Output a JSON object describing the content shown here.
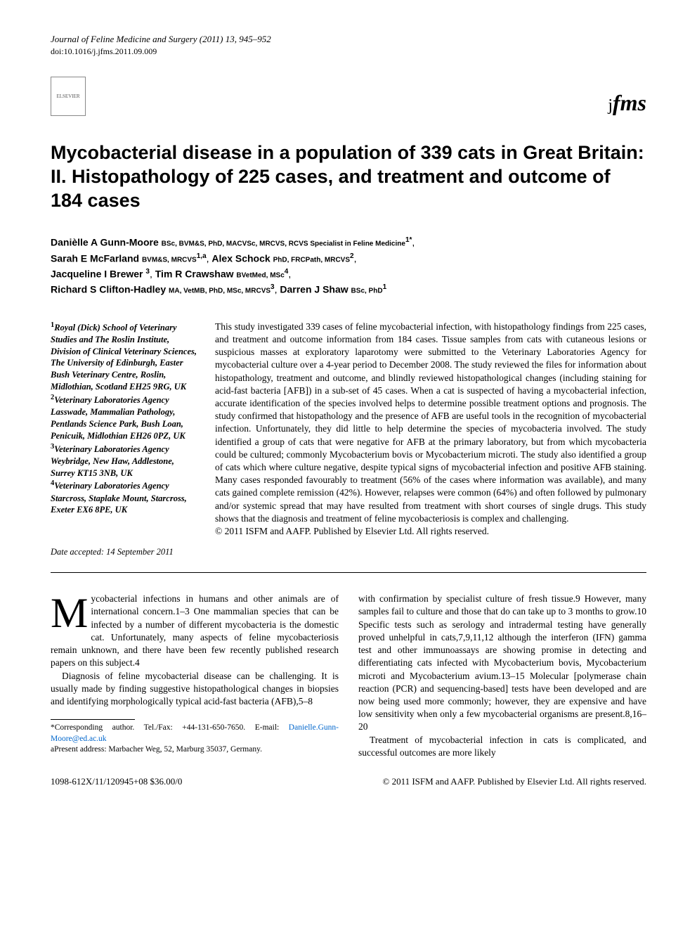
{
  "journal_header": "Journal of Feline Medicine and Surgery (2011) 13, 945–952",
  "doi": "doi:10.1016/j.jfms.2011.09.009",
  "elsevier_label": "ELSEVIER",
  "jfms_logo_text": "jfms",
  "title": "Mycobacterial disease in a population of 339 cats in Great Britain: II. Histopathology of 225 cases, and treatment and outcome of 184 cases",
  "authors": [
    {
      "name": "Danièlle A Gunn-Moore",
      "cred": "BSc, BVM&S, PhD, MACVSc, MRCVS, RCVS Specialist in Feline Medicine",
      "sup": "1*",
      "trail": ","
    },
    {
      "name": "Sarah E McFarland",
      "cred": "BVM&S, MRCVS",
      "sup": "1,a",
      "trail": ", "
    },
    {
      "name": "Alex Schock",
      "cred": "PhD, FRCPath, MRCVS",
      "sup": "2",
      "trail": ","
    },
    {
      "name": "Jacqueline I Brewer",
      "cred": "",
      "sup": "3",
      "trail": ", "
    },
    {
      "name": "Tim R Crawshaw",
      "cred": "BVetMed, MSc",
      "sup": "4",
      "trail": ","
    },
    {
      "name": "Richard S Clifton-Hadley",
      "cred": "MA, VetMB, PhD, MSc, MRCVS",
      "sup": "3",
      "trail": ", "
    },
    {
      "name": "Darren J Shaw",
      "cred": "BSc, PhD",
      "sup": "1",
      "trail": ""
    }
  ],
  "affiliations": [
    {
      "sup": "1",
      "text": "Royal (Dick) School of Veterinary Studies and The Roslin Institute, Division of Clinical Veterinary Sciences, The University of Edinburgh, Easter Bush Veterinary Centre, Roslin, Midlothian, Scotland EH25 9RG, UK"
    },
    {
      "sup": "2",
      "text": "Veterinary Laboratories Agency Lasswade, Mammalian Pathology, Pentlands Science Park, Bush Loan, Penicuik, Midlothian EH26 0PZ, UK"
    },
    {
      "sup": "3",
      "text": "Veterinary Laboratories Agency Weybridge, New Haw, Addlestone, Surrey KT15 3NB, UK"
    },
    {
      "sup": "4",
      "text": "Veterinary Laboratories Agency Starcross, Staplake Mount, Starcross, Exeter EX6 8PE, UK"
    }
  ],
  "abstract": "This study investigated 339 cases of feline mycobacterial infection, with histopathology findings from 225 cases, and treatment and outcome information from 184 cases. Tissue samples from cats with cutaneous lesions or suspicious masses at exploratory laparotomy were submitted to the Veterinary Laboratories Agency for mycobacterial culture over a 4-year period to December 2008. The study reviewed the files for information about histopathology, treatment and outcome, and blindly reviewed histopathological changes (including staining for acid-fast bacteria [AFB]) in a sub-set of 45 cases. When a cat is suspected of having a mycobacterial infection, accurate identification of the species involved helps to determine possible treatment options and prognosis. The study confirmed that histopathology and the presence of AFB are useful tools in the recognition of mycobacterial infection. Unfortunately, they did little to help determine the species of mycobacteria involved. The study identified a group of cats that were negative for AFB at the primary laboratory, but from which mycobacteria could be cultured; commonly Mycobacterium bovis or Mycobacterium microti. The study also identified a group of cats which where culture negative, despite typical signs of mycobacterial infection and positive AFB staining. Many cases responded favourably to treatment (56% of the cases where information was available), and many cats gained complete remission (42%). However, relapses were common (64%) and often followed by pulmonary and/or systemic spread that may have resulted from treatment with short courses of single drugs. This study shows that the diagnosis and treatment of feline mycobacteriosis is complex and challenging.",
  "copyright_abstract": "© 2011 ISFM and AAFP. Published by Elsevier Ltd. All rights reserved.",
  "date_accepted": "Date accepted: 14 September 2011",
  "body_left_p1": "ycobacterial infections in humans and other animals are of international concern.1–3 One mammalian species that can be infected by a number of different mycobacteria is the domestic cat. Unfortunately, many aspects of feline mycobacteriosis remain unknown, and there have been few recently published research papers on this subject.4",
  "body_left_p2": "Diagnosis of feline mycobacterial disease can be challenging. It is usually made by finding suggestive histopathological changes in biopsies and identifying morphologically typical acid-fast bacteria (AFB),5–8",
  "body_right_p1": "with confirmation by specialist culture of fresh tissue.9 However, many samples fail to culture and those that do can take up to 3 months to grow.10 Specific tests such as serology and intradermal testing have generally proved unhelpful in cats,7,9,11,12 although the interferon (IFN) gamma test and other immunoassays are showing promise in detecting and differentiating cats infected with Mycobacterium bovis, Mycobacterium microti and Mycobacterium avium.13–15 Molecular [polymerase chain reaction (PCR) and sequencing-based] tests have been developed and are now being used more commonly; however, they are expensive and have low sensitivity when only a few mycobacterial organisms are present.8,16–20",
  "body_right_p2": "Treatment of mycobacterial infection in cats is complicated, and successful outcomes are more likely",
  "footnote_corresponding": "*Corresponding author. Tel./Fax: +44-131-650-7650. E-mail: ",
  "footnote_email": "Danielle.Gunn-Moore@ed.ac.uk",
  "footnote_present": "aPresent address: Marbacher Weg, 52, Marburg 35037, Germany.",
  "footer_left": "1098-612X/11/120945+08 $36.00/0",
  "footer_right": "© 2011 ISFM and AAFP. Published by Elsevier Ltd. All rights reserved."
}
